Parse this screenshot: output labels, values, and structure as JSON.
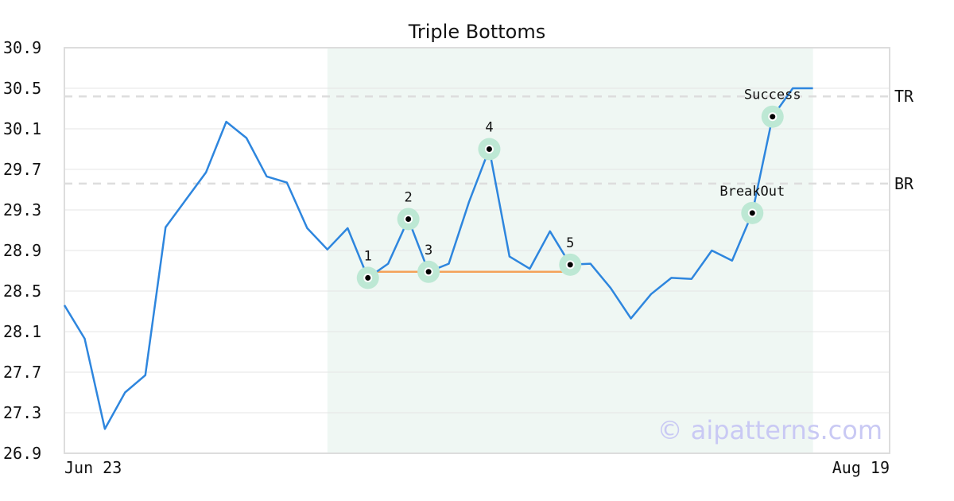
{
  "chart_data": {
    "type": "line",
    "title": "Triple Bottoms",
    "xlabel": "",
    "ylabel": "",
    "ylim": [
      26.9,
      30.9
    ],
    "yticks": [
      "30.9",
      "30.5",
      "30.1",
      "29.7",
      "29.3",
      "28.9",
      "28.5",
      "28.1",
      "27.7",
      "27.3",
      "26.9"
    ],
    "x_tick_labels": [
      {
        "label": "Jun 23",
        "index": 0
      },
      {
        "label": "Aug 19",
        "index": 41
      }
    ],
    "grid": true,
    "colors": {
      "line": "#2e86de",
      "neckline": "#f4a259",
      "marker_halo": "#bde8d4",
      "pattern_region": "#eff7f3",
      "guides": "#dddddd",
      "watermark": "#c9c9f4"
    },
    "series": [
      {
        "values": [
          28.36,
          28.03,
          27.14,
          27.5,
          27.67,
          29.13,
          29.4,
          29.67,
          30.17,
          30.01,
          29.63,
          29.57,
          29.12,
          28.91,
          29.12,
          28.63,
          28.77,
          29.21,
          28.69,
          28.77,
          29.38,
          29.9,
          28.84,
          28.72,
          29.09,
          28.76,
          28.77,
          28.53,
          28.23,
          28.47,
          28.63,
          28.62,
          28.9,
          28.8,
          29.27,
          30.22,
          30.5,
          30.5
        ]
      }
    ],
    "pattern_region": {
      "start_index": 13,
      "end_index": 37
    },
    "neckline": {
      "start_index": 15,
      "end_index": 25,
      "value": 28.69
    },
    "marked_points": [
      {
        "label": "1",
        "index": 15,
        "value": 28.63
      },
      {
        "label": "2",
        "index": 17,
        "value": 29.21
      },
      {
        "label": "3",
        "index": 18,
        "value": 28.69
      },
      {
        "label": "4",
        "index": 21,
        "value": 29.9
      },
      {
        "label": "5",
        "index": 25,
        "value": 28.76
      },
      {
        "label": "BreakOut",
        "index": 34,
        "value": 29.27
      },
      {
        "label": "Success",
        "index": 35,
        "value": 30.22
      }
    ],
    "guide_lines": [
      {
        "label": "TR",
        "value": 30.42
      },
      {
        "label": "BR",
        "value": 29.56
      }
    ],
    "watermark": "© aipatterns.com"
  }
}
